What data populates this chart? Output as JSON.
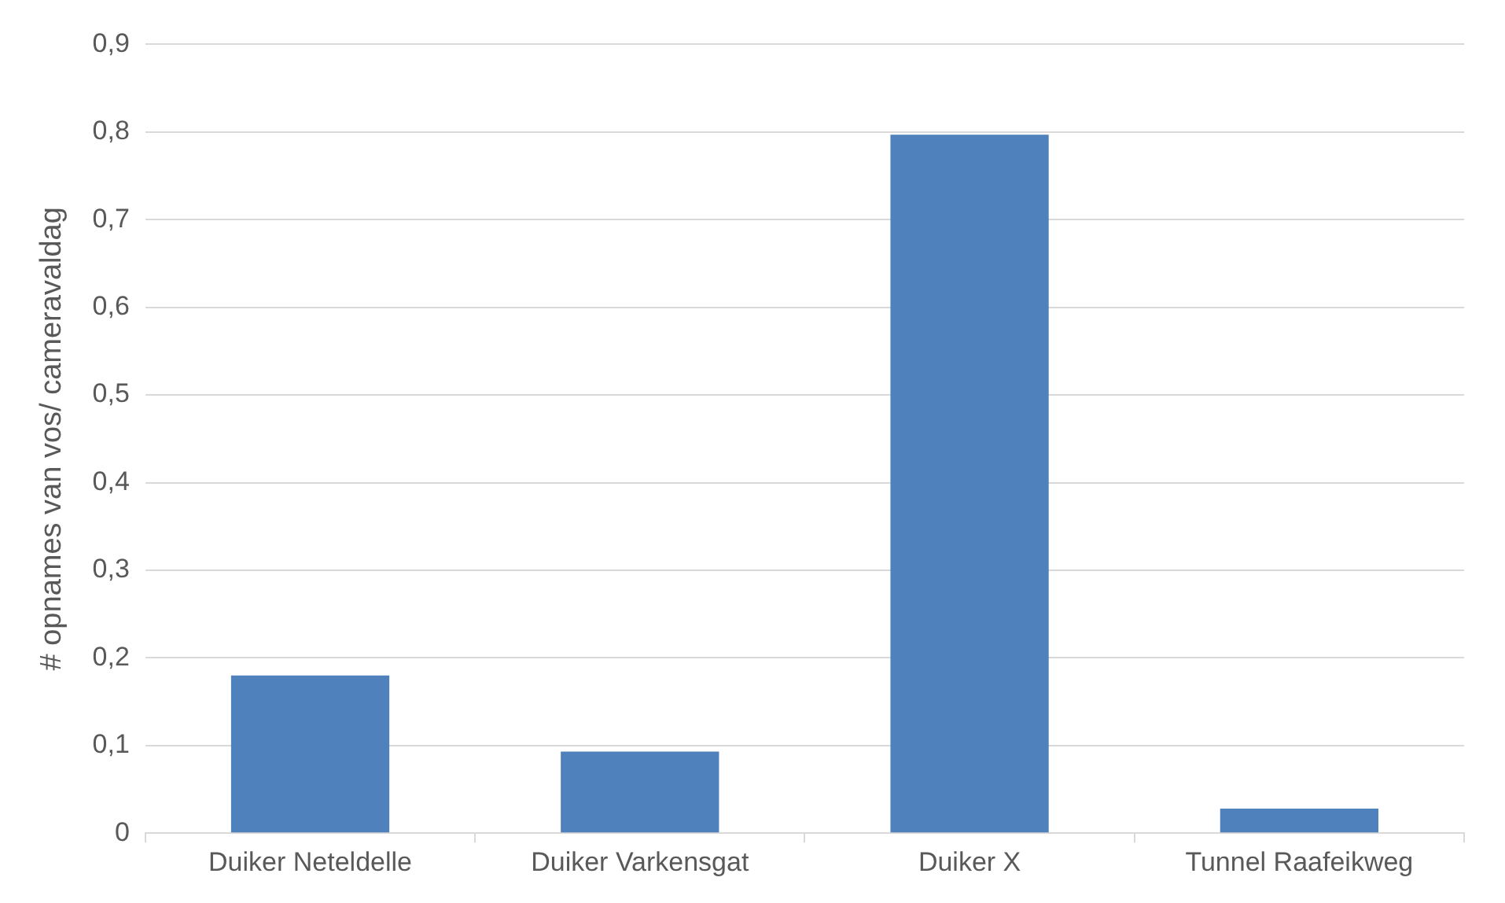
{
  "chart_data": {
    "type": "bar",
    "ylabel": "# opnames van vos/ cameravaldag",
    "categories": [
      "Duiker Neteldelle",
      "Duiker Varkensgat",
      "Duiker X",
      "Tunnel Raafeikweg"
    ],
    "values": [
      0.18,
      0.093,
      0.797,
      0.028
    ],
    "color": "#4f81bd",
    "ylim": [
      0,
      0.9
    ],
    "yticks": [
      0,
      {
        "value": 0.1,
        "label": "0,1"
      },
      {
        "value": 0.2,
        "label": "0,2"
      },
      {
        "value": 0.3,
        "label": "0,3"
      },
      {
        "value": 0.4,
        "label": "0,4"
      },
      {
        "value": 0.5,
        "label": "0,5"
      },
      {
        "value": 0.6,
        "label": "0,6"
      },
      {
        "value": 0.7,
        "label": "0,7"
      },
      {
        "value": 0.8,
        "label": "0,8"
      },
      {
        "value": 0.9,
        "label": "0,9"
      }
    ],
    "grid": "y"
  }
}
